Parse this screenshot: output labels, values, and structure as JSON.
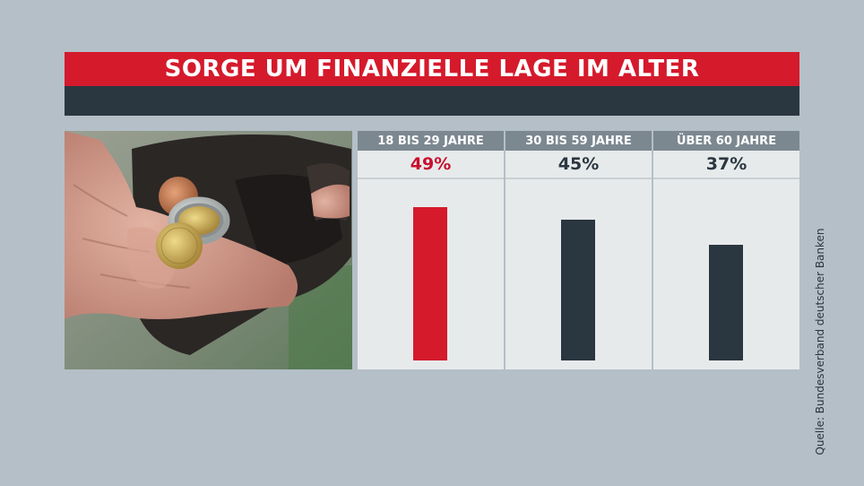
{
  "title": "SORGE UM FINANZIELLE LAGE IM ALTER",
  "source": "Quelle: Bundesverband deutscher Banken",
  "colors": {
    "highlight": "#d51a2c",
    "default_bar": "#2a3640",
    "header": "#7c8890",
    "background": "#b4bfc7"
  },
  "chart_data": {
    "type": "bar",
    "title": "SORGE UM FINANZIELLE LAGE IM ALTER",
    "categories": [
      "18 BIS 29 JAHRE",
      "30 BIS 59 JAHRE",
      "ÜBER 60 JAHRE"
    ],
    "values": [
      49,
      45,
      37
    ],
    "value_labels": [
      "49%",
      "45%",
      "37%"
    ],
    "unit": "%",
    "highlight_index": 0,
    "bar_colors": [
      "#d51a2c",
      "#2a3640",
      "#2a3640"
    ],
    "ylim": [
      0,
      60
    ],
    "grid": false,
    "legend": "none"
  }
}
